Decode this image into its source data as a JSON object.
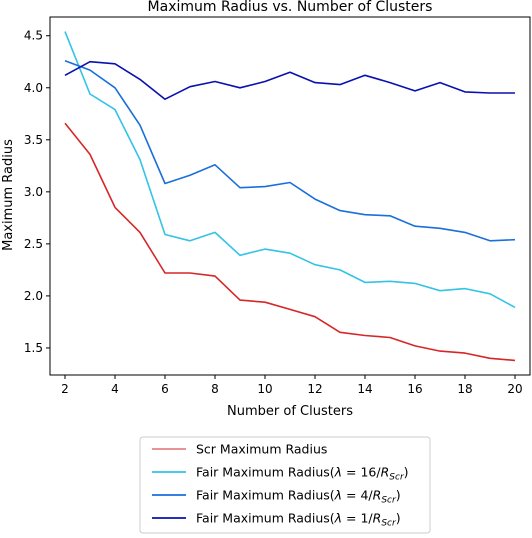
{
  "chart_data": {
    "type": "line",
    "title": "Maximum Radius vs. Number of Clusters",
    "xlabel": "Number of Clusters",
    "ylabel": "Maximum Radius",
    "xlim": [
      1.4,
      20.6
    ],
    "ylim": [
      1.24,
      4.68
    ],
    "xticks": [
      2,
      4,
      6,
      8,
      10,
      12,
      14,
      16,
      18,
      20
    ],
    "xtick_labels": [
      "2",
      "4",
      "6",
      "8",
      "10",
      "12",
      "14",
      "16",
      "18",
      "20"
    ],
    "yticks": [
      1.5,
      2.0,
      2.5,
      3.0,
      3.5,
      4.0,
      4.5
    ],
    "ytick_labels": [
      "1.5",
      "2.0",
      "2.5",
      "3.0",
      "3.5",
      "4.0",
      "4.5"
    ],
    "grid": false,
    "legend_position": "below",
    "x": [
      2,
      3,
      4,
      5,
      6,
      7,
      8,
      9,
      10,
      11,
      12,
      13,
      14,
      15,
      16,
      17,
      18,
      19,
      20
    ],
    "series": [
      {
        "name": "Scr Maximum Radius",
        "color": "#d62728",
        "values": [
          3.66,
          3.36,
          2.85,
          2.61,
          2.22,
          2.22,
          2.19,
          1.96,
          1.94,
          1.87,
          1.8,
          1.65,
          1.62,
          1.6,
          1.52,
          1.47,
          1.45,
          1.4,
          1.38
        ]
      },
      {
        "name": "Fair Maximum Radius(λ = 16/R_Scr)",
        "color": "#33c3e6",
        "values": [
          4.54,
          3.94,
          3.79,
          3.31,
          2.59,
          2.53,
          2.61,
          2.39,
          2.45,
          2.41,
          2.3,
          2.25,
          2.13,
          2.14,
          2.12,
          2.05,
          2.07,
          2.02,
          1.89
        ]
      },
      {
        "name": "Fair Maximum Radius(λ = 4/R_Scr)",
        "color": "#1a6fdb",
        "values": [
          4.26,
          4.17,
          4.0,
          3.64,
          3.08,
          3.16,
          3.26,
          3.04,
          3.05,
          3.09,
          2.93,
          2.82,
          2.78,
          2.77,
          2.67,
          2.65,
          2.61,
          2.53,
          2.54
        ]
      },
      {
        "name": "Fair Maximum Radius(λ = 1/R_Scr)",
        "color": "#0a10b0",
        "values": [
          4.12,
          4.25,
          4.23,
          4.08,
          3.89,
          4.01,
          4.06,
          4.0,
          4.06,
          4.15,
          4.05,
          4.03,
          4.12,
          4.05,
          3.97,
          4.05,
          3.96,
          3.95,
          3.95
        ]
      }
    ],
    "legend_entries": [
      {
        "prefix": "Scr Maximum Radius",
        "lambda_num": "",
        "sub": ""
      },
      {
        "prefix": "Fair Maximum Radius(",
        "lambda_num": "16",
        "sub": "Scr"
      },
      {
        "prefix": "Fair Maximum Radius(",
        "lambda_num": "4",
        "sub": "Scr"
      },
      {
        "prefix": "Fair Maximum Radius(",
        "lambda_num": "1",
        "sub": "Scr"
      }
    ]
  }
}
